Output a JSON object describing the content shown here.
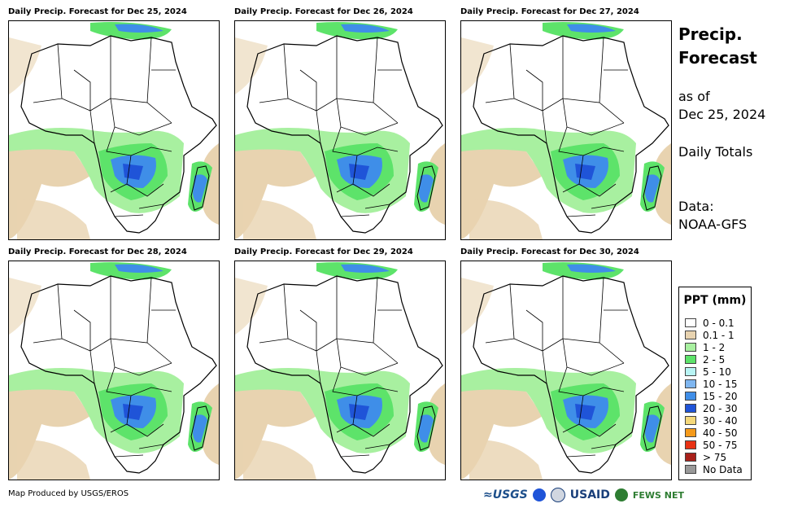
{
  "panels": [
    {
      "title": "Daily Precip. Forecast for Dec 25, 2024"
    },
    {
      "title": "Daily Precip. Forecast for Dec 26, 2024"
    },
    {
      "title": "Daily Precip. Forecast for Dec 27, 2024"
    },
    {
      "title": "Daily Precip. Forecast for Dec 28, 2024"
    },
    {
      "title": "Daily Precip. Forecast for Dec 29, 2024"
    },
    {
      "title": "Daily Precip. Forecast for Dec 30, 2024"
    }
  ],
  "side": {
    "title_line1": "Precip.",
    "title_line2": "Forecast",
    "as_of": "as of",
    "date": "Dec 25, 2024",
    "totals": "Daily Totals",
    "data_label": "Data:",
    "data_source": "NOAA-GFS"
  },
  "legend": {
    "title": "PPT (mm)",
    "items": [
      {
        "label": "0 - 0.1",
        "color": "#ffffff"
      },
      {
        "label": "0.1 - 1",
        "color": "#e8d3b0"
      },
      {
        "label": "1 - 2",
        "color": "#a8f0a0"
      },
      {
        "label": "2 - 5",
        "color": "#5de36a"
      },
      {
        "label": "5 - 10",
        "color": "#b8f4f4"
      },
      {
        "label": "10 - 15",
        "color": "#7fb6f0"
      },
      {
        "label": "15 - 20",
        "color": "#3f8ee8"
      },
      {
        "label": "20 - 30",
        "color": "#1f54d8"
      },
      {
        "label": "30 - 40",
        "color": "#f5d87a"
      },
      {
        "label": "40 - 50",
        "color": "#f59a1a"
      },
      {
        "label": "50 - 75",
        "color": "#e83214"
      },
      {
        "label": "> 75",
        "color": "#a8201a"
      },
      {
        "label": "No Data",
        "color": "#999999"
      }
    ]
  },
  "footer": {
    "credit": "Map Produced by USGS/EROS",
    "logo_usgs": "≈USGS",
    "logo_usaid": "USAID",
    "logo_fews": "FEWS NET"
  }
}
